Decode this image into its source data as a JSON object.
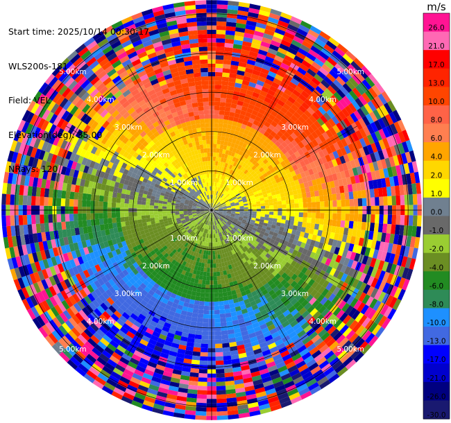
{
  "header": {
    "start_time": "Start time: 2025/10/14 00:30:17",
    "instrument": "WLS200s-181",
    "field": "Field: VEL",
    "elevation": "Elevation(deg): 35.00",
    "nrays": "NRays: 120"
  },
  "chart_data": {
    "type": "heatmap",
    "projection": "polar-ppi",
    "rays": 120,
    "unit": "m/s",
    "vlim": [
      -30,
      30
    ],
    "range_rings_km": [
      1,
      2,
      3,
      4,
      5
    ],
    "range_labels": [
      "1.00km",
      "2.00km",
      "3.00km",
      "4.00km",
      "5.00km"
    ],
    "colorbar": {
      "unit": "m/s",
      "ticks": [
        "26.0",
        "21.0",
        "17.0",
        "13.0",
        "10.0",
        "8.0",
        "6.0",
        "4.0",
        "2.0",
        "1.0",
        "0.0",
        "-1.0",
        "-2.0",
        "-4.0",
        "-6.0",
        "-8.0",
        "-10.0",
        "-13.0",
        "-17.0",
        "-21.0",
        "-26.0",
        "-30.0"
      ],
      "colors": [
        "#ff1493",
        "#ff69b4",
        "#ff0000",
        "#ff2400",
        "#ff4500",
        "#ff6347",
        "#ff7f50",
        "#ffa500",
        "#ffd700",
        "#ffff00",
        "#708090",
        "#696969",
        "#9acd32",
        "#6b8e23",
        "#228b22",
        "#2e8b57",
        "#1e90ff",
        "#4169e1",
        "#0000ff",
        "#0000cd",
        "#000080",
        "#191970"
      ]
    }
  }
}
